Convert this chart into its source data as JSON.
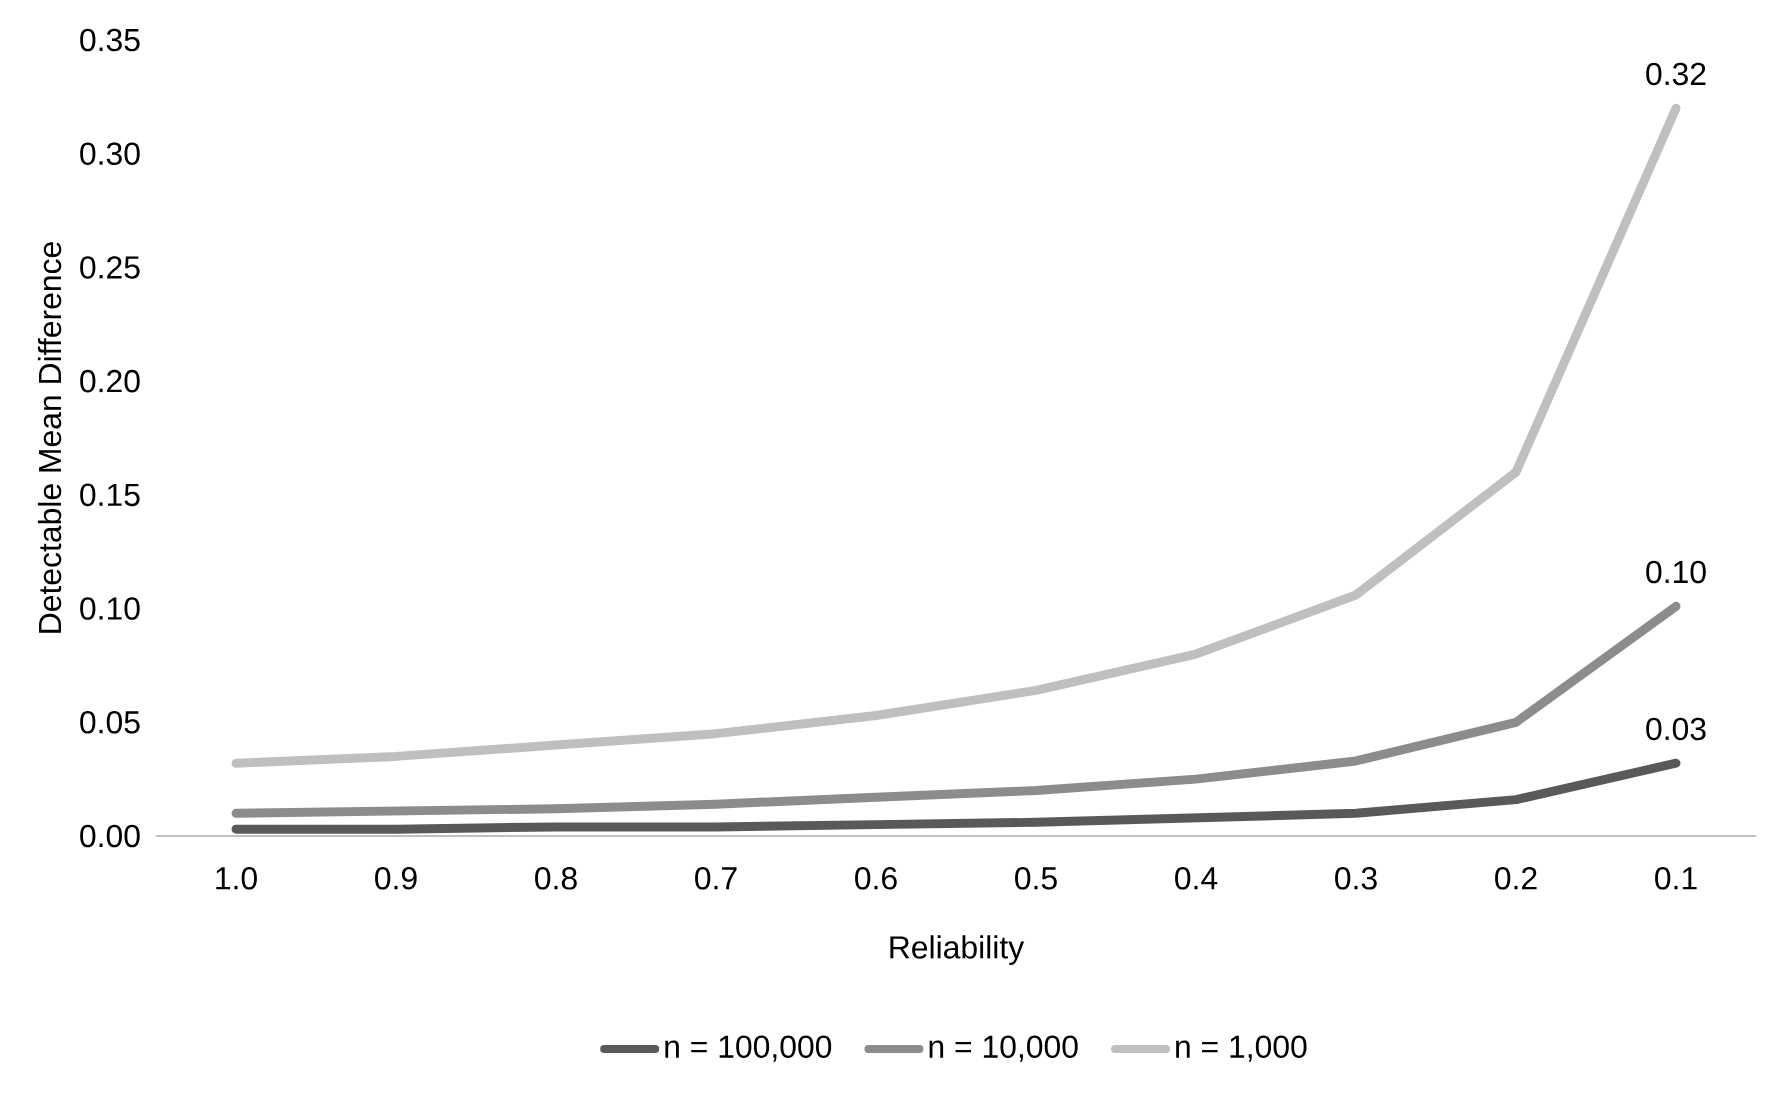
{
  "chart_data": {
    "type": "line",
    "xlabel": "Reliability",
    "ylabel": "Detectable Mean Difference",
    "categories": [
      "1.0",
      "0.9",
      "0.8",
      "0.7",
      "0.6",
      "0.5",
      "0.4",
      "0.3",
      "0.2",
      "0.1"
    ],
    "series": [
      {
        "name": "n = 100,000",
        "color": "#595959",
        "values": [
          0.003,
          0.003,
          0.004,
          0.004,
          0.005,
          0.006,
          0.008,
          0.01,
          0.016,
          0.032
        ],
        "value_labels": [
          null,
          null,
          null,
          null,
          null,
          null,
          null,
          null,
          null,
          "0.03"
        ]
      },
      {
        "name": "n = 10,000",
        "color": "#8c8c8c",
        "values": [
          0.01,
          0.011,
          0.012,
          0.014,
          0.017,
          0.02,
          0.025,
          0.033,
          0.05,
          0.101
        ],
        "value_labels": [
          null,
          null,
          null,
          null,
          null,
          null,
          null,
          null,
          null,
          "0.10"
        ]
      },
      {
        "name": "n = 1,000",
        "color": "#bfbfbf",
        "values": [
          0.032,
          0.035,
          0.04,
          0.045,
          0.053,
          0.064,
          0.08,
          0.106,
          0.16,
          0.32
        ],
        "value_labels": [
          null,
          null,
          null,
          null,
          null,
          null,
          null,
          null,
          null,
          "0.32"
        ]
      }
    ],
    "ylim": [
      0,
      0.35
    ],
    "yticks": [
      {
        "value": 0,
        "label": "0.00"
      },
      0.05,
      {
        "value": 0.1,
        "label": "0.10"
      },
      0.15,
      {
        "value": 0.2,
        "label": "0.20"
      },
      0.25,
      {
        "value": 0.3,
        "label": "0.30"
      },
      0.35
    ],
    "legend": "bottom",
    "marker": "none"
  }
}
